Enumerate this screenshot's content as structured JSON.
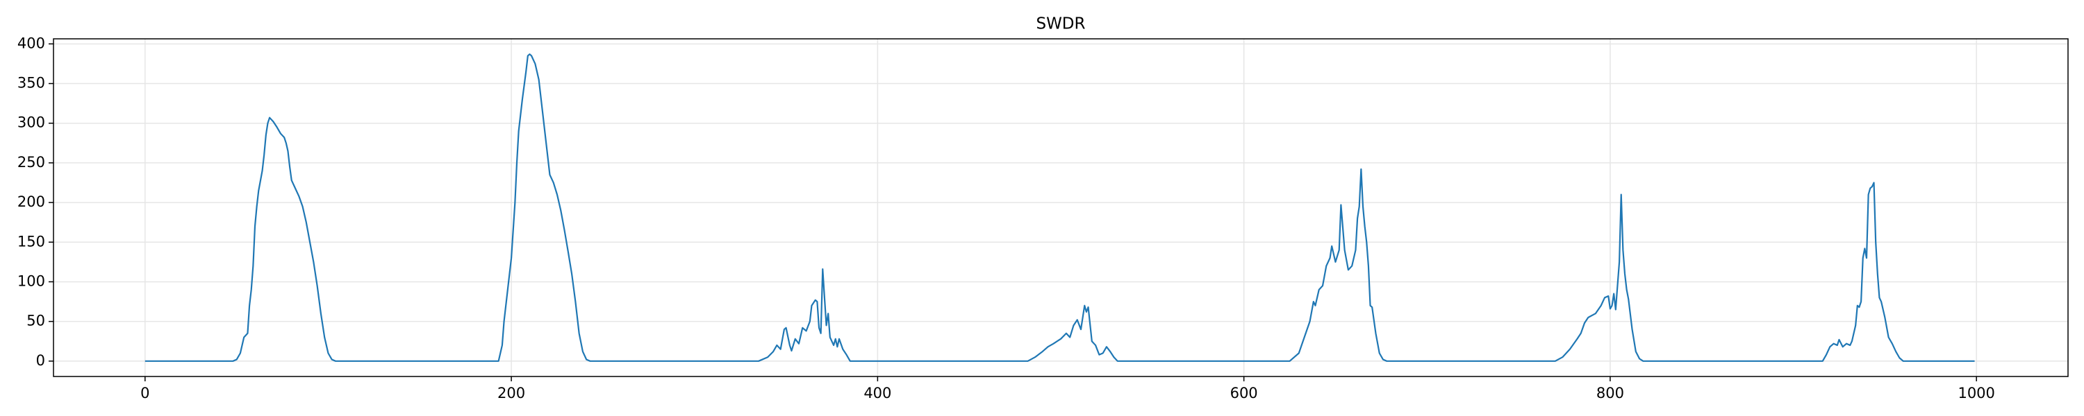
{
  "chart_data": {
    "type": "line",
    "title": "SWDR",
    "x": [
      0,
      48,
      50,
      52,
      54,
      56,
      57,
      58,
      59,
      60,
      61,
      62,
      64,
      65,
      66,
      67,
      68,
      70,
      72,
      74,
      76,
      77,
      78,
      79,
      80,
      82,
      84,
      86,
      88,
      90,
      92,
      94,
      96,
      98,
      100,
      102,
      104,
      193,
      195,
      196,
      198,
      200,
      202,
      203,
      204,
      206,
      208,
      209,
      210,
      211,
      213,
      215,
      217,
      219,
      221,
      223,
      225,
      227,
      229,
      231,
      233,
      235,
      237,
      239,
      241,
      243,
      335,
      340,
      343,
      345,
      347,
      349,
      350,
      352,
      353,
      355,
      357,
      359,
      361,
      363,
      364,
      366,
      367,
      368,
      369,
      370,
      371,
      372,
      373,
      374,
      376,
      377,
      378,
      379,
      381,
      383,
      385,
      482,
      486,
      490,
      493,
      496,
      500,
      503,
      505,
      507,
      509,
      511,
      513,
      514,
      515,
      517,
      519,
      521,
      523,
      525,
      527,
      529,
      531,
      625,
      630,
      633,
      636,
      638,
      639,
      641,
      643,
      645,
      647,
      648,
      650,
      652,
      653,
      655,
      657,
      659,
      661,
      662,
      663,
      664,
      665,
      666,
      667,
      668,
      669,
      670,
      672,
      674,
      676,
      678,
      770,
      774,
      778,
      782,
      784,
      786,
      788,
      792,
      795,
      797,
      799,
      800,
      801,
      802,
      803,
      804,
      805,
      806,
      807,
      808,
      809,
      810,
      812,
      814,
      816,
      818,
      916,
      918,
      920,
      922,
      924,
      925,
      927,
      929,
      931,
      932,
      934,
      935,
      936,
      937,
      938,
      939,
      940,
      941,
      942,
      943,
      944,
      945,
      946,
      947,
      948,
      950,
      952,
      954,
      956,
      958,
      960,
      999
    ],
    "series": [
      {
        "color": "#1f77b4",
        "values": [
          0,
          0,
          2,
          10,
          30,
          35,
          70,
          90,
          120,
          170,
          195,
          215,
          240,
          260,
          285,
          300,
          307,
          302,
          295,
          287,
          282,
          275,
          265,
          245,
          228,
          218,
          208,
          195,
          175,
          150,
          125,
          95,
          60,
          30,
          10,
          2,
          0,
          0,
          20,
          50,
          90,
          130,
          200,
          250,
          290,
          330,
          365,
          385,
          387,
          385,
          375,
          355,
          315,
          275,
          235,
          225,
          210,
          190,
          165,
          138,
          110,
          75,
          35,
          12,
          2,
          0,
          0,
          5,
          12,
          20,
          15,
          40,
          42,
          20,
          13,
          28,
          22,
          42,
          38,
          50,
          70,
          77,
          75,
          42,
          35,
          116,
          80,
          45,
          60,
          30,
          20,
          28,
          18,
          28,
          15,
          8,
          0,
          0,
          5,
          12,
          18,
          22,
          28,
          35,
          30,
          45,
          52,
          40,
          70,
          62,
          68,
          25,
          20,
          8,
          10,
          18,
          12,
          5,
          0,
          0,
          10,
          30,
          50,
          75,
          70,
          90,
          95,
          120,
          130,
          145,
          125,
          140,
          197,
          140,
          115,
          120,
          140,
          180,
          195,
          242,
          195,
          170,
          150,
          120,
          70,
          68,
          35,
          10,
          2,
          0,
          0,
          5,
          15,
          28,
          35,
          48,
          55,
          60,
          70,
          80,
          82,
          66,
          70,
          85,
          65,
          95,
          125,
          210,
          140,
          110,
          90,
          78,
          40,
          12,
          3,
          0,
          0,
          8,
          18,
          22,
          20,
          27,
          18,
          22,
          20,
          25,
          45,
          70,
          68,
          75,
          130,
          142,
          130,
          210,
          218,
          220,
          225,
          150,
          110,
          80,
          75,
          55,
          30,
          22,
          12,
          4,
          0,
          0
        ]
      }
    ],
    "xlim": [
      -50,
      1050
    ],
    "ylim": [
      -19.4,
      406.4
    ],
    "xticks": [
      0,
      200,
      400,
      600,
      800,
      1000
    ],
    "yticks": [
      0,
      50,
      100,
      150,
      200,
      250,
      300,
      350,
      400
    ],
    "grid": true
  }
}
